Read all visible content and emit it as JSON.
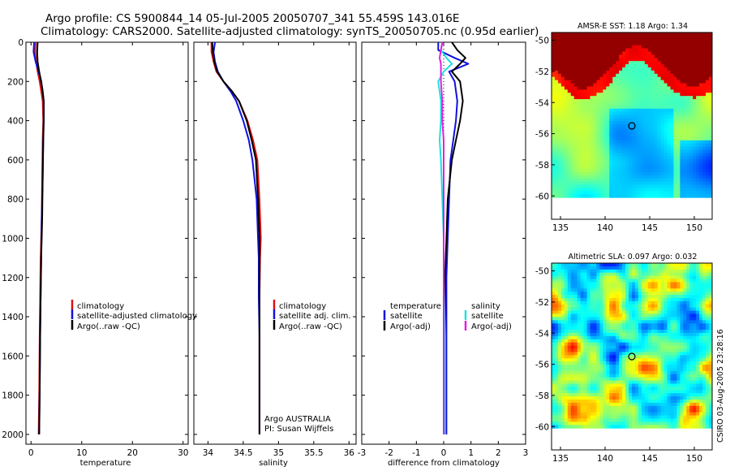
{
  "figure": {
    "title_line1": "Argo profile: CS 5900844_14 05-Jul-2005 20050707_341 55.459S 143.016E",
    "title_line2": "Climatology: CARS2000. Satellite-adjusted climatology: synTS_20050705.nc (0.95d earlier)",
    "credit": "CSIRO 03-Aug-2005 23:28:16",
    "colors": {
      "climatology": "#e01010",
      "satellite": "#1010e0",
      "argo": "#000000",
      "salinity_sat": "#20e0e0",
      "salinity_adj": "#e020e0"
    }
  },
  "chart_data": [
    {
      "type": "line",
      "name": "temperature-profile",
      "xlabel": "temperature",
      "xlim": [
        -1,
        31
      ],
      "ylim": [
        0,
        2050
      ],
      "xticks": [
        "0",
        "10",
        "20",
        "30"
      ],
      "xtick_values": [
        0,
        10,
        20,
        30
      ],
      "yticks": [
        "0",
        "200",
        "400",
        "600",
        "800",
        "1000",
        "1200",
        "1400",
        "1600",
        "1800",
        "2000"
      ],
      "ytick_values": [
        0,
        200,
        400,
        600,
        800,
        1000,
        1200,
        1400,
        1600,
        1800,
        2000
      ],
      "legend": [
        "climatology",
        "satellite-adjusted climatology",
        "Argo(..raw -QC)"
      ],
      "series": [
        {
          "name": "climatology",
          "color": "#e01010",
          "x": [
            0.9,
            0.8,
            1.0,
            1.3,
            1.7,
            2.0,
            2.3,
            2.4,
            2.3,
            2.2,
            2.1,
            1.9,
            1.8,
            1.7,
            1.6,
            1.5
          ],
          "y": [
            0,
            50,
            100,
            150,
            200,
            250,
            300,
            400,
            500,
            700,
            900,
            1100,
            1300,
            1500,
            1800,
            2000
          ]
        },
        {
          "name": "satellite",
          "color": "#1010e0",
          "x": [
            0.6,
            0.5,
            0.9,
            1.5,
            2.0,
            2.3,
            2.5,
            2.5,
            2.4,
            2.3,
            2.1,
            2.0,
            1.9,
            1.8,
            1.7,
            1.6
          ],
          "y": [
            0,
            50,
            100,
            150,
            200,
            250,
            300,
            400,
            500,
            700,
            900,
            1100,
            1300,
            1500,
            1800,
            2000
          ]
        },
        {
          "name": "argo",
          "color": "#000000",
          "x": [
            1.3,
            1.2,
            1.3,
            1.6,
            2.0,
            2.3,
            2.5,
            2.5,
            2.4,
            2.3,
            2.2,
            2.0,
            1.9,
            1.8,
            1.7,
            1.6
          ],
          "y": [
            0,
            50,
            100,
            150,
            200,
            250,
            300,
            400,
            500,
            700,
            900,
            1100,
            1300,
            1500,
            1800,
            2000
          ]
        }
      ]
    },
    {
      "type": "line",
      "name": "salinity-profile",
      "xlabel": "salinity",
      "xlim": [
        33.8,
        36.1
      ],
      "ylim": [
        0,
        2050
      ],
      "xticks": [
        "34",
        "34.5",
        "35",
        "35.5",
        "36"
      ],
      "xtick_values": [
        34,
        34.5,
        35,
        35.5,
        36
      ],
      "legend": [
        "climatology",
        "satellite adj. clim.",
        "Argo(..raw -QC)"
      ],
      "annotation_line1": "Argo AUSTRALIA",
      "annotation_line2": "PI: Susan Wijffels",
      "series": [
        {
          "name": "climatology",
          "color": "#e01010",
          "x": [
            34.05,
            34.05,
            34.08,
            34.12,
            34.22,
            34.34,
            34.44,
            34.56,
            34.64,
            34.7,
            34.73,
            34.75,
            34.74,
            34.73,
            34.73,
            34.73,
            34.73
          ],
          "y": [
            0,
            50,
            100,
            150,
            200,
            250,
            300,
            400,
            500,
            600,
            800,
            1000,
            1100,
            1300,
            1500,
            1800,
            2000
          ]
        },
        {
          "name": "satellite",
          "color": "#1010e0",
          "x": [
            34.1,
            34.08,
            34.1,
            34.14,
            34.22,
            34.32,
            34.4,
            34.5,
            34.58,
            34.63,
            34.69,
            34.71,
            34.72,
            34.72,
            34.73,
            34.73,
            34.73
          ],
          "y": [
            0,
            50,
            100,
            150,
            200,
            250,
            300,
            400,
            500,
            600,
            800,
            1000,
            1100,
            1300,
            1500,
            1800,
            2000
          ]
        },
        {
          "name": "argo",
          "color": "#000000",
          "x": [
            34.06,
            34.07,
            34.09,
            34.13,
            34.22,
            34.34,
            34.44,
            34.55,
            34.62,
            34.68,
            34.71,
            34.73,
            34.73,
            34.73,
            34.73,
            34.73,
            34.73
          ],
          "y": [
            0,
            50,
            100,
            150,
            200,
            250,
            300,
            400,
            500,
            600,
            800,
            1000,
            1100,
            1300,
            1500,
            1800,
            2000
          ]
        }
      ]
    },
    {
      "type": "line",
      "name": "difference-profile",
      "xlabel": "difference from climatology",
      "xlim": [
        -3,
        3
      ],
      "ylim": [
        0,
        2050
      ],
      "xticks": [
        "-3",
        "-2",
        "-1",
        "0",
        "1",
        "2",
        "3"
      ],
      "xtick_values": [
        -3,
        -2,
        -1,
        0,
        1,
        2,
        3
      ],
      "legend_left_header": "temperature",
      "legend_left": [
        "satellite",
        "Argo(-adj)"
      ],
      "legend_right_header": "salinity",
      "legend_right": [
        "satellite",
        "Argo(-adj)"
      ],
      "series": [
        {
          "name": "temperature-satellite",
          "color": "#1010e0",
          "x": [
            -0.2,
            -0.2,
            0.4,
            0.9,
            0.2,
            0.4,
            0.5,
            0.45,
            0.35,
            0.25,
            0.2,
            0.15,
            0.1,
            0.1,
            0.1,
            0.1
          ],
          "y": [
            0,
            40,
            80,
            110,
            150,
            200,
            300,
            400,
            500,
            600,
            800,
            1000,
            1200,
            1500,
            1800,
            2000
          ]
        },
        {
          "name": "temperature-argo",
          "color": "#000000",
          "x": [
            0.3,
            0.5,
            0.8,
            0.6,
            0.3,
            0.6,
            0.7,
            0.6,
            0.45,
            0.3,
            0.15,
            0.1,
            0.05,
            0.05,
            0.05,
            0.05
          ],
          "y": [
            0,
            40,
            80,
            110,
            150,
            200,
            300,
            400,
            500,
            600,
            800,
            1000,
            1200,
            1500,
            1800,
            2000
          ]
        },
        {
          "name": "salinity-satellite",
          "color": "#20e0e0",
          "x": [
            -0.05,
            -0.1,
            0.1,
            0.3,
            0.0,
            -0.2,
            -0.1,
            -0.1,
            -0.15,
            -0.1,
            -0.05,
            0.0,
            0.0,
            0.05,
            0.05,
            0.05
          ],
          "y": [
            0,
            40,
            80,
            110,
            150,
            200,
            300,
            400,
            500,
            600,
            800,
            1000,
            1200,
            1500,
            1800,
            2000
          ]
        },
        {
          "name": "salinity-argo",
          "color": "#e020e0",
          "x": [
            -0.05,
            -0.1,
            -0.15,
            -0.1,
            -0.1,
            -0.1,
            -0.05,
            -0.05,
            0.0,
            0.0,
            0.0,
            0.0,
            0.0,
            0.0,
            0.0,
            0.0
          ],
          "y": [
            0,
            40,
            80,
            110,
            150,
            200,
            300,
            400,
            500,
            600,
            800,
            1000,
            1200,
            1500,
            1800,
            2000
          ]
        }
      ]
    },
    {
      "type": "heatmap",
      "name": "sst-map",
      "title": "AMSR-E SST: 1.18  Argo: 1.34",
      "xlim": [
        134,
        152
      ],
      "ylim": [
        -61.5,
        -49.5
      ],
      "xticks": [
        "135",
        "140",
        "145",
        "150"
      ],
      "xtick_values": [
        135,
        140,
        145,
        150
      ],
      "yticks": [
        "-50",
        "-52",
        "-54",
        "-56",
        "-58",
        "-60"
      ],
      "ytick_values": [
        -50,
        -52,
        -54,
        -56,
        -58,
        -60
      ],
      "marker_lon": 143.0,
      "marker_lat": -55.5
    },
    {
      "type": "heatmap",
      "name": "sla-map",
      "title": "Altimetric SLA: 0.097  Argo: 0.032",
      "xlim": [
        134,
        152
      ],
      "ylim": [
        -61.5,
        -49.5
      ],
      "xticks": [
        "135",
        "140",
        "145",
        "150"
      ],
      "xtick_values": [
        135,
        140,
        145,
        150
      ],
      "yticks": [
        "-50",
        "-52",
        "-54",
        "-56",
        "-58",
        "-60"
      ],
      "ytick_values": [
        -50,
        -52,
        -54,
        -56,
        -58,
        -60
      ],
      "marker_lon": 143.0,
      "marker_lat": -55.5
    }
  ]
}
